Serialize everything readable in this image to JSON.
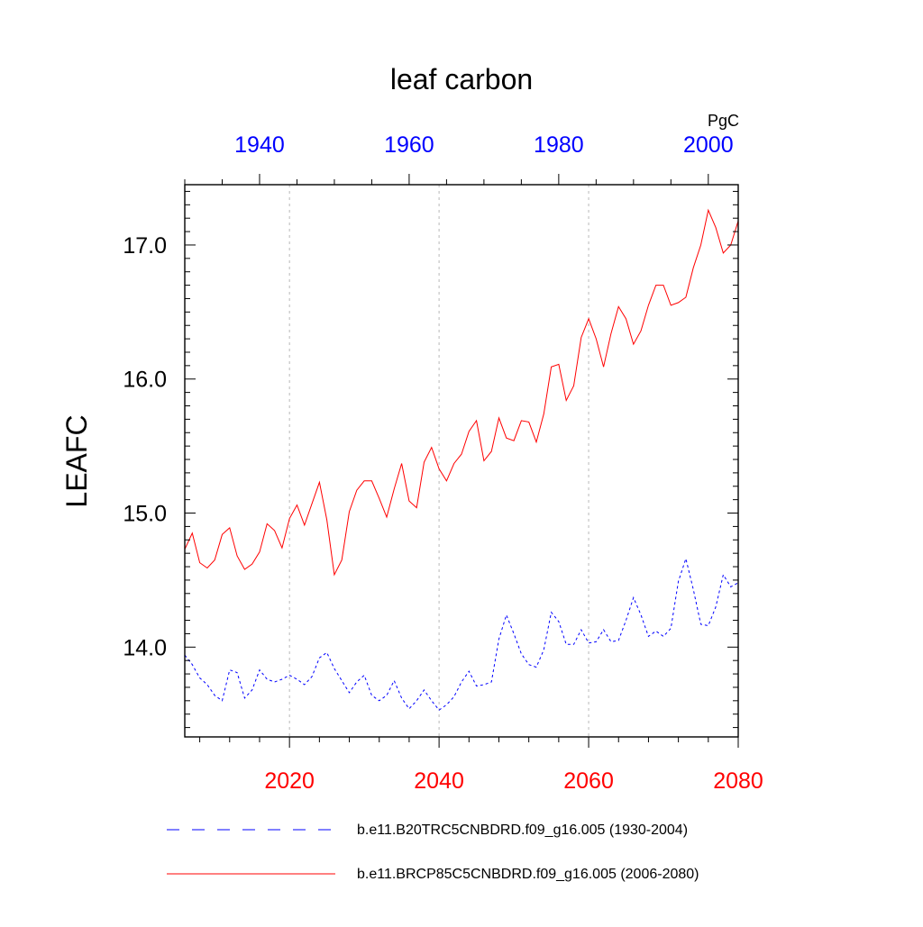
{
  "chart_data": {
    "type": "line",
    "title": "leaf carbon",
    "units_label": "PgC",
    "ylabel": "LEAFC",
    "ylim": [
      13.33,
      17.45
    ],
    "y_ticks": [
      14.0,
      15.0,
      16.0,
      17.0
    ],
    "y_tick_labels": [
      "14.0",
      "15.0",
      "16.0",
      "17.0"
    ],
    "bottom_axis": {
      "range": [
        2006,
        2080
      ],
      "ticks": [
        2020,
        2040,
        2060,
        2080
      ],
      "tick_labels": [
        "2020",
        "2040",
        "2060",
        "2080"
      ],
      "color": "#ff0000"
    },
    "top_axis": {
      "range": [
        1930,
        2004
      ],
      "ticks": [
        1940,
        1960,
        1980,
        2000
      ],
      "tick_labels": [
        "1940",
        "1960",
        "1980",
        "2000"
      ],
      "color": "#0000ff"
    },
    "gridlines_x": [
      2020,
      2040,
      2060
    ],
    "series": [
      {
        "name": "b.e11.B20TRC5CNBDRD.f09_g16.005 (1930-2004)",
        "axis": "top",
        "color": "#0000ff",
        "dash": "dashed",
        "x_start": 1930,
        "values": [
          13.94,
          13.87,
          13.77,
          13.72,
          13.64,
          13.6,
          13.83,
          13.81,
          13.62,
          13.68,
          13.83,
          13.76,
          13.74,
          13.76,
          13.79,
          13.76,
          13.72,
          13.78,
          13.92,
          13.96,
          13.84,
          13.75,
          13.66,
          13.74,
          13.79,
          13.64,
          13.6,
          13.64,
          13.75,
          13.62,
          13.54,
          13.6,
          13.68,
          13.6,
          13.53,
          13.57,
          13.63,
          13.74,
          13.82,
          13.71,
          13.72,
          13.74,
          14.06,
          14.24,
          14.1,
          13.95,
          13.87,
          13.85,
          13.98,
          14.26,
          14.19,
          14.02,
          14.02,
          14.13,
          14.03,
          14.04,
          14.13,
          14.04,
          14.05,
          14.2,
          14.37,
          14.24,
          14.08,
          14.12,
          14.08,
          14.14,
          14.49,
          14.66,
          14.43,
          14.17,
          14.16,
          14.3,
          14.54,
          14.45,
          14.48
        ]
      },
      {
        "name": "b.e11.BRCP85C5CNBDRD.f09_g16.005 (2006-2080)",
        "axis": "bottom",
        "color": "#ff0000",
        "dash": "solid",
        "x_start": 2006,
        "values": [
          14.73,
          14.85,
          14.63,
          14.59,
          14.65,
          14.84,
          14.89,
          14.68,
          14.58,
          14.62,
          14.71,
          14.92,
          14.87,
          14.74,
          14.96,
          15.06,
          14.91,
          15.07,
          15.23,
          14.95,
          14.54,
          14.65,
          15.01,
          15.17,
          15.24,
          15.24,
          15.11,
          14.97,
          15.18,
          15.37,
          15.09,
          15.04,
          15.38,
          15.49,
          15.33,
          15.24,
          15.37,
          15.44,
          15.61,
          15.69,
          15.39,
          15.46,
          15.71,
          15.56,
          15.54,
          15.69,
          15.68,
          15.53,
          15.74,
          16.09,
          16.11,
          15.84,
          15.95,
          16.31,
          16.45,
          16.3,
          16.09,
          16.34,
          16.54,
          16.45,
          16.26,
          16.36,
          16.55,
          16.7,
          16.7,
          16.55,
          16.57,
          16.61,
          16.83,
          17.0,
          17.26,
          17.13,
          16.94,
          17.0,
          17.18
        ]
      }
    ],
    "legend": {
      "placement": "bottom",
      "entries": [
        "b.e11.B20TRC5CNBDRD.f09_g16.005 (1930-2004)",
        "b.e11.BRCP85C5CNBDRD.f09_g16.005 (2006-2080)"
      ]
    }
  }
}
